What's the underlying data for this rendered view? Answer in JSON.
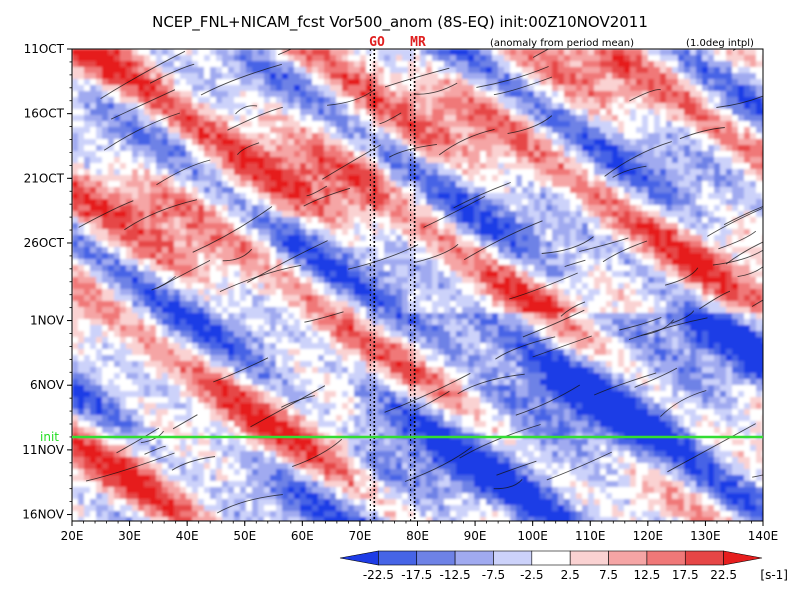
{
  "chart_data": {
    "type": "heatmap",
    "title": "NCEP_FNL+NICAM_fcst Vor500_anom (8S-EQ) init:00Z10NOV2011",
    "note_left": "(anomaly from period mean)",
    "note_right": "(1.0deg intpl)",
    "x_ticks": [
      {
        "value": 20,
        "label": "20E"
      },
      {
        "value": 30,
        "label": "30E"
      },
      {
        "value": 40,
        "label": "40E"
      },
      {
        "value": 50,
        "label": "50E"
      },
      {
        "value": 60,
        "label": "60E"
      },
      {
        "value": 70,
        "label": "70E"
      },
      {
        "value": 80,
        "label": "80E"
      },
      {
        "value": 90,
        "label": "90E"
      },
      {
        "value": 100,
        "label": "100E"
      },
      {
        "value": 110,
        "label": "110E"
      },
      {
        "value": 120,
        "label": "120E"
      },
      {
        "value": 130,
        "label": "130E"
      },
      {
        "value": 140,
        "label": "140E"
      }
    ],
    "xlim": [
      20,
      140
    ],
    "y_ticks": [
      {
        "value": 0,
        "label": "11OCT"
      },
      {
        "value": 5,
        "label": "16OCT"
      },
      {
        "value": 10,
        "label": "21OCT"
      },
      {
        "value": 15,
        "label": "26OCT"
      },
      {
        "value": 21,
        "label": "1NOV"
      },
      {
        "value": 26,
        "label": "6NOV"
      },
      {
        "value": 31,
        "label": "11NOV"
      },
      {
        "value": 36,
        "label": "16NOV"
      }
    ],
    "ylim": [
      0,
      36.5
    ],
    "y_direction": "time increases downward",
    "markers": [
      {
        "label": "GO",
        "lon": 72.5
      },
      {
        "label": "MR",
        "lon": 79.5
      }
    ],
    "init_line": {
      "label": "init",
      "value": 30.0
    },
    "colorbar": {
      "labels": [
        "-22.5",
        "-17.5",
        "-12.5",
        "-7.5",
        "-2.5",
        "2.5",
        "7.5",
        "12.5",
        "17.5",
        "22.5"
      ],
      "unit": "[s-1]",
      "colors": [
        "#1e3ce6",
        "#4664e6",
        "#6e82e6",
        "#a0aaf0",
        "#ccd2fa",
        "#ffffff",
        "#fad2d2",
        "#f5a5a5",
        "#f07878",
        "#e64646",
        "#e61e1e"
      ]
    },
    "colors": {
      "init_line": "#33dd33",
      "marker_text": "#e02020"
    }
  }
}
